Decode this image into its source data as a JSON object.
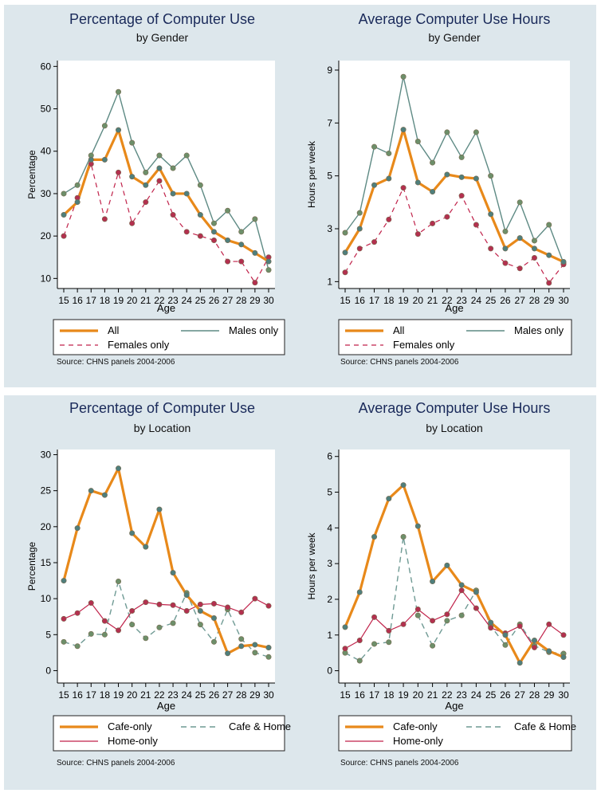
{
  "chart_data": [
    {
      "type": "line",
      "title": "Percentage of Computer Use",
      "subtitle": "by Gender",
      "xlabel": "Age",
      "ylabel": "Percentage",
      "x": [
        15,
        16,
        17,
        18,
        19,
        20,
        21,
        22,
        23,
        24,
        25,
        26,
        27,
        28,
        29,
        30
      ],
      "xticks": [
        "15",
        "16",
        "17",
        "18",
        "19",
        "20",
        "21",
        "22",
        "23",
        "24",
        "25",
        "26",
        "27",
        "28",
        "29",
        "30"
      ],
      "ylim": [
        8,
        61
      ],
      "yticks": [
        10,
        20,
        30,
        40,
        50,
        60
      ],
      "series": [
        {
          "name": "All",
          "style": "all",
          "values": [
            25,
            28,
            38,
            38,
            45,
            34,
            32,
            36,
            30,
            30,
            25,
            21,
            19,
            18,
            16,
            14
          ]
        },
        {
          "name": "Males only",
          "style": "male",
          "values": [
            30,
            32,
            39,
            46,
            54,
            42,
            35,
            39,
            36,
            39,
            32,
            23,
            26,
            21,
            24,
            12
          ]
        },
        {
          "name": "Females only",
          "style": "female",
          "values": [
            20,
            29,
            37,
            24,
            35,
            23,
            28,
            33,
            25,
            21,
            20,
            19,
            14,
            14,
            9,
            15
          ]
        }
      ],
      "legend_rows": [
        [
          "All",
          "Males only"
        ],
        [
          "Females only"
        ]
      ],
      "source": "Source: CHNS panels 2004-2006"
    },
    {
      "type": "line",
      "title": "Average Computer Use Hours",
      "subtitle": "by Gender",
      "xlabel": "Age",
      "ylabel": "Hours per week",
      "x": [
        15,
        16,
        17,
        18,
        19,
        20,
        21,
        22,
        23,
        24,
        25,
        26,
        27,
        28,
        29,
        30
      ],
      "xticks": [
        "15",
        "16",
        "17",
        "18",
        "19",
        "20",
        "21",
        "22",
        "23",
        "24",
        "25",
        "26",
        "27",
        "28",
        "29",
        "30"
      ],
      "ylim": [
        0.8,
        9.3
      ],
      "yticks": [
        1,
        3,
        5,
        7,
        9
      ],
      "series": [
        {
          "name": "All",
          "style": "all",
          "values": [
            2.1,
            3.0,
            4.65,
            4.9,
            6.75,
            4.75,
            4.4,
            5.05,
            4.95,
            4.9,
            3.55,
            2.25,
            2.65,
            2.25,
            2.0,
            1.75
          ]
        },
        {
          "name": "Males only",
          "style": "male",
          "values": [
            2.85,
            3.6,
            6.1,
            5.85,
            8.75,
            6.3,
            5.5,
            6.65,
            5.7,
            6.65,
            5.0,
            2.9,
            4.0,
            2.55,
            3.15,
            1.7
          ]
        },
        {
          "name": "Females only",
          "style": "female",
          "values": [
            1.35,
            2.25,
            2.5,
            3.35,
            4.55,
            2.8,
            3.2,
            3.45,
            4.25,
            3.15,
            2.25,
            1.7,
            1.5,
            1.9,
            0.95,
            1.65
          ]
        }
      ],
      "legend_rows": [
        [
          "All",
          "Males only"
        ],
        [
          "Females only"
        ]
      ],
      "source": "Source: CHNS panels 2004-2006"
    },
    {
      "type": "line",
      "title": "Percentage of Computer Use",
      "subtitle": "by Location",
      "xlabel": "Age",
      "ylabel": "Percentage",
      "x": [
        15,
        16,
        17,
        18,
        19,
        20,
        21,
        22,
        23,
        24,
        25,
        26,
        27,
        28,
        29,
        30
      ],
      "xticks": [
        "15",
        "16",
        "17",
        "18",
        "19",
        "20",
        "21",
        "22",
        "23",
        "24",
        "25",
        "26",
        "27",
        "28",
        "29",
        "30"
      ],
      "ylim": [
        -1.5,
        30.5
      ],
      "yticks": [
        0,
        5,
        10,
        15,
        20,
        25,
        30
      ],
      "series": [
        {
          "name": "Cafe-only",
          "style": "all",
          "values": [
            12.5,
            19.8,
            25.0,
            24.4,
            28.1,
            19.1,
            17.2,
            22.4,
            13.6,
            10.5,
            8.3,
            7.3,
            2.4,
            3.4,
            3.6,
            3.2
          ]
        },
        {
          "name": "Cafe & Home",
          "style": "male",
          "values": [
            4.0,
            3.4,
            5.1,
            5.0,
            12.4,
            6.4,
            4.5,
            6.0,
            6.6,
            10.8,
            6.4,
            4.0,
            8.5,
            4.4,
            2.5,
            1.9
          ]
        },
        {
          "name": "Home-only",
          "style": "female",
          "values": [
            7.2,
            8.0,
            9.4,
            6.9,
            5.6,
            8.3,
            9.5,
            9.2,
            9.1,
            8.3,
            9.2,
            9.3,
            8.8,
            8.1,
            10.0,
            9.0
          ]
        }
      ],
      "legend_rows": [
        [
          "Cafe-only",
          "Cafe & Home"
        ],
        [
          "Home-only"
        ]
      ],
      "source": "Source: CHNS panels 2004-2006"
    },
    {
      "type": "line",
      "title": "Average Computer Use Hours",
      "subtitle": "by Location",
      "xlabel": "Age",
      "ylabel": "Hours per week",
      "x": [
        15,
        16,
        17,
        18,
        19,
        20,
        21,
        22,
        23,
        24,
        25,
        26,
        27,
        28,
        29,
        30
      ],
      "xticks": [
        "15",
        "16",
        "17",
        "18",
        "19",
        "20",
        "21",
        "22",
        "23",
        "24",
        "25",
        "26",
        "27",
        "28",
        "29",
        "30"
      ],
      "ylim": [
        -0.3,
        6.15
      ],
      "yticks": [
        0,
        1,
        2,
        3,
        4,
        5,
        6
      ],
      "series": [
        {
          "name": "Cafe-only",
          "style": "all",
          "values": [
            1.22,
            2.2,
            3.75,
            4.82,
            5.2,
            4.05,
            2.5,
            2.95,
            2.4,
            2.2,
            1.35,
            1.0,
            0.22,
            0.85,
            0.55,
            0.38
          ]
        },
        {
          "name": "Cafe & Home",
          "style": "male",
          "values": [
            0.5,
            0.28,
            0.75,
            0.8,
            3.75,
            1.55,
            0.7,
            1.4,
            1.55,
            2.25,
            1.25,
            0.72,
            1.3,
            0.7,
            0.52,
            0.48
          ]
        },
        {
          "name": "Home-only",
          "style": "female",
          "values": [
            0.62,
            0.85,
            1.5,
            1.12,
            1.3,
            1.72,
            1.4,
            1.58,
            2.25,
            1.75,
            1.2,
            1.05,
            1.25,
            0.65,
            1.3,
            1.0
          ]
        }
      ],
      "legend_rows": [
        [
          "Cafe-only",
          "Cafe & Home"
        ],
        [
          "Home-only"
        ]
      ],
      "source": "Source: CHNS panels 2004-2006"
    }
  ]
}
